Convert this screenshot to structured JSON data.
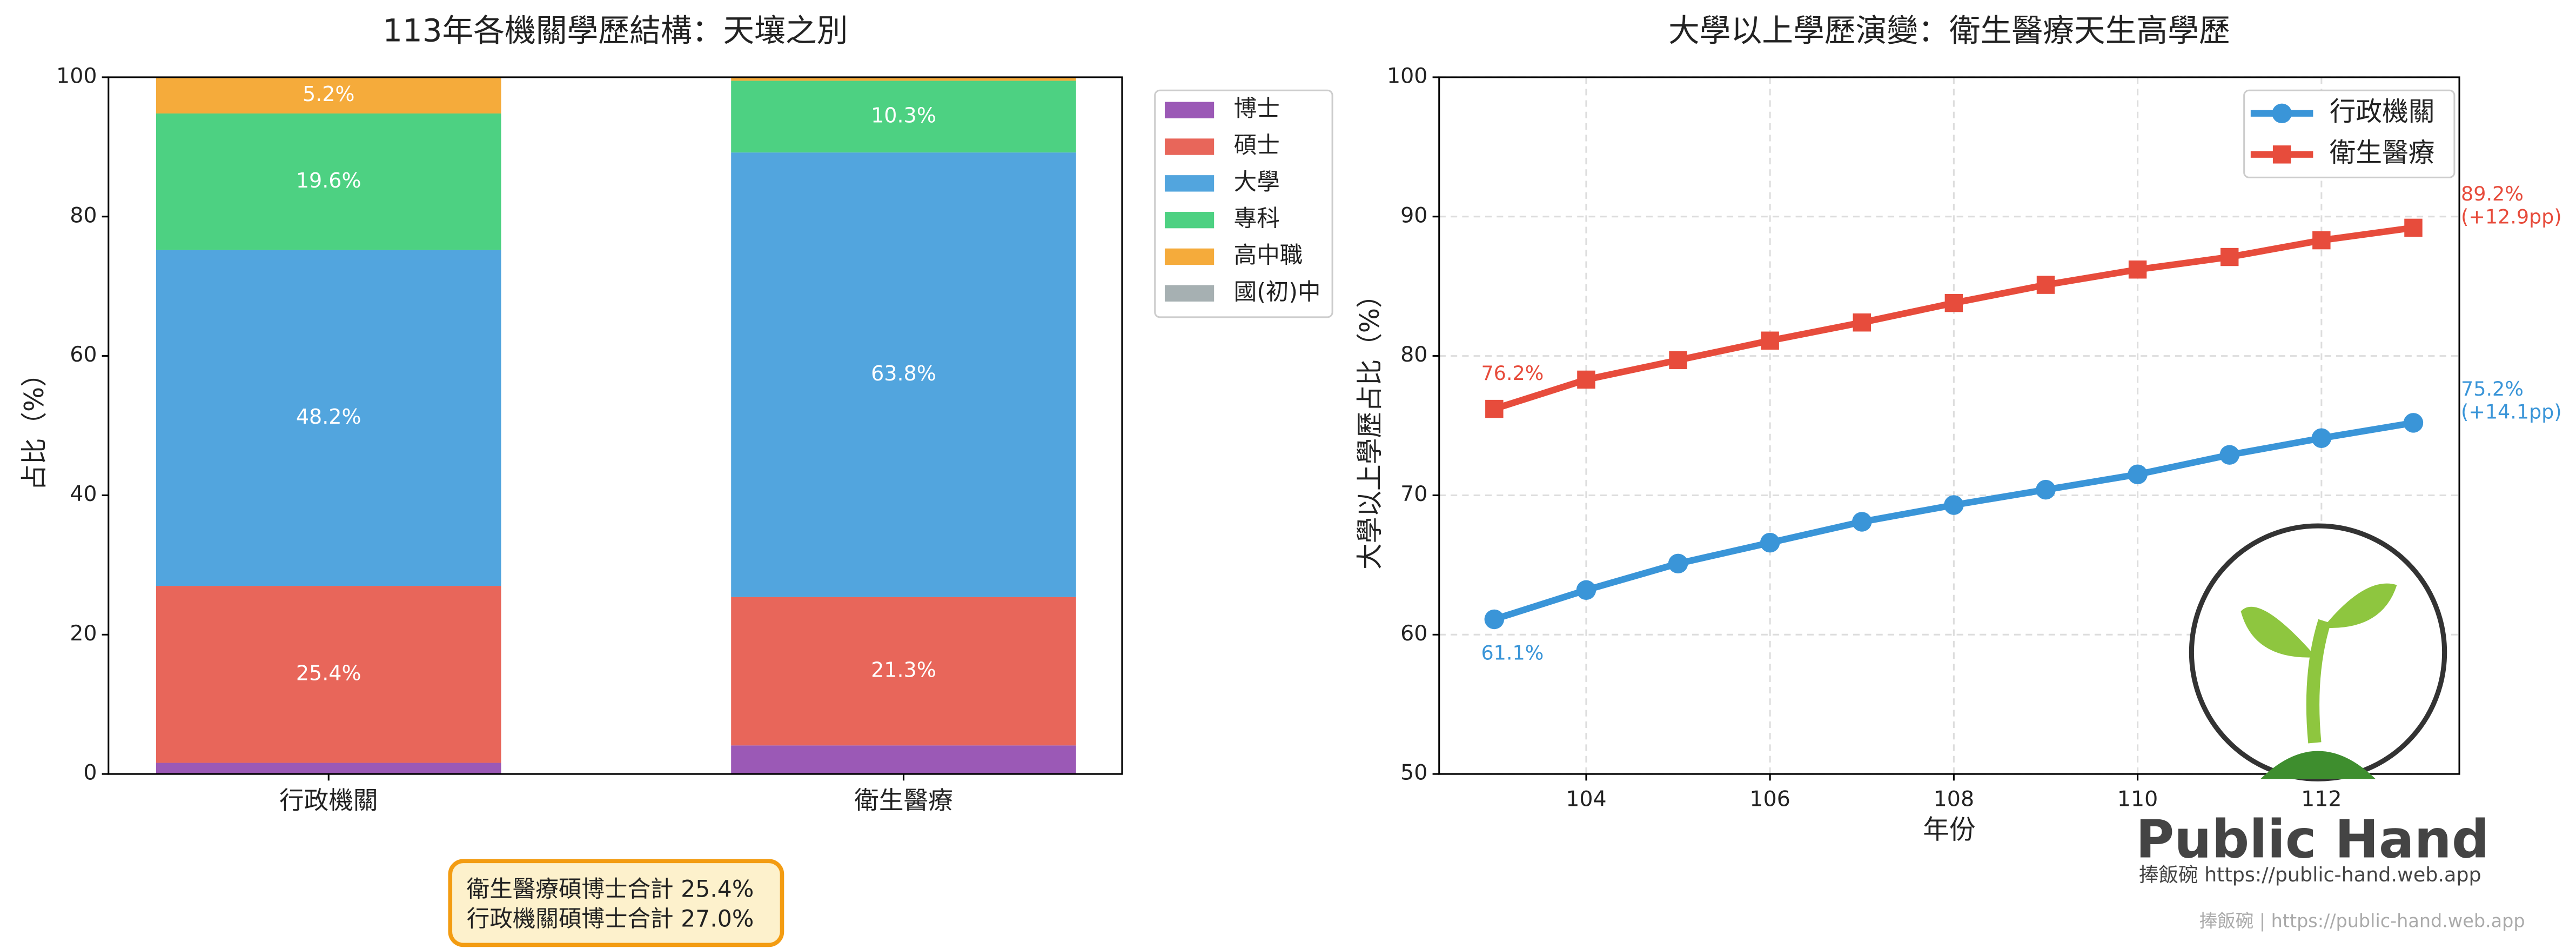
{
  "chart_data": [
    {
      "type": "stacked_bar",
      "title": "113年各機關學歷結構：天壤之別",
      "ylabel": "占比（%）",
      "categories": [
        "行政機關",
        "衛生醫療"
      ],
      "series": [
        {
          "name": "博士",
          "color": "#9b59b6",
          "values": [
            1.6,
            4.1
          ],
          "value_labels": [
            null,
            null
          ]
        },
        {
          "name": "碩士",
          "color": "#e8665a",
          "values": [
            25.4,
            21.3
          ],
          "value_labels": [
            "25.4%",
            "21.3%"
          ]
        },
        {
          "name": "大學",
          "color": "#52a5de",
          "values": [
            48.2,
            63.8
          ],
          "value_labels": [
            "48.2%",
            "63.8%"
          ]
        },
        {
          "name": "專科",
          "color": "#4dd182",
          "values": [
            19.6,
            10.3
          ],
          "value_labels": [
            "19.6%",
            "10.3%"
          ]
        },
        {
          "name": "高中職",
          "color": "#f5ab3b",
          "values": [
            5.2,
            0.5
          ],
          "value_labels": [
            "5.2%",
            null
          ]
        },
        {
          "name": "國(初)中",
          "color": "#a6b0b2",
          "values": [
            0,
            0
          ],
          "value_labels": [
            null,
            null
          ]
        }
      ],
      "ylim": [
        0,
        100
      ],
      "yticks": [
        0,
        20,
        40,
        60,
        80,
        100
      ],
      "legend": "outside-right",
      "annotation": [
        "衛生醫療碩博士合計 25.4%",
        "行政機關碩博士合計 27.0%"
      ]
    },
    {
      "type": "line",
      "title": "大學以上學歷演變：衛生醫療天生高學歷",
      "xlabel": "年份",
      "ylabel": "大學以上學歷占比（%）",
      "x": [
        103,
        104,
        105,
        106,
        107,
        108,
        109,
        110,
        111,
        112,
        113
      ],
      "series": [
        {
          "name": "行政機關",
          "color": "#3a95d8",
          "marker": "circle",
          "values": [
            61.1,
            63.2,
            65.1,
            66.6,
            68.1,
            69.3,
            70.4,
            71.5,
            72.9,
            74.1,
            75.2
          ],
          "start_label": "61.1%",
          "end_label": [
            "75.2%",
            "(+14.1pp)"
          ]
        },
        {
          "name": "衛生醫療",
          "color": "#e74c3c",
          "marker": "square",
          "values": [
            76.2,
            78.3,
            79.7,
            81.1,
            82.4,
            83.8,
            85.1,
            86.2,
            87.1,
            88.3,
            89.2
          ],
          "start_label": "76.2%",
          "end_label": [
            "89.2%",
            "(+12.9pp)"
          ]
        }
      ],
      "xlim": [
        102.4,
        113.5
      ],
      "xticks": [
        104,
        106,
        108,
        110,
        112
      ],
      "ylim": [
        50,
        100
      ],
      "yticks": [
        50,
        60,
        70,
        80,
        90,
        100
      ],
      "grid": true,
      "legend": "upper right"
    }
  ],
  "watermark": {
    "brand": "Public Hand",
    "tagline": "捧飯碗 https://public-hand.web.app",
    "footer": "捧飯碗 | https://public-hand.web.app"
  }
}
